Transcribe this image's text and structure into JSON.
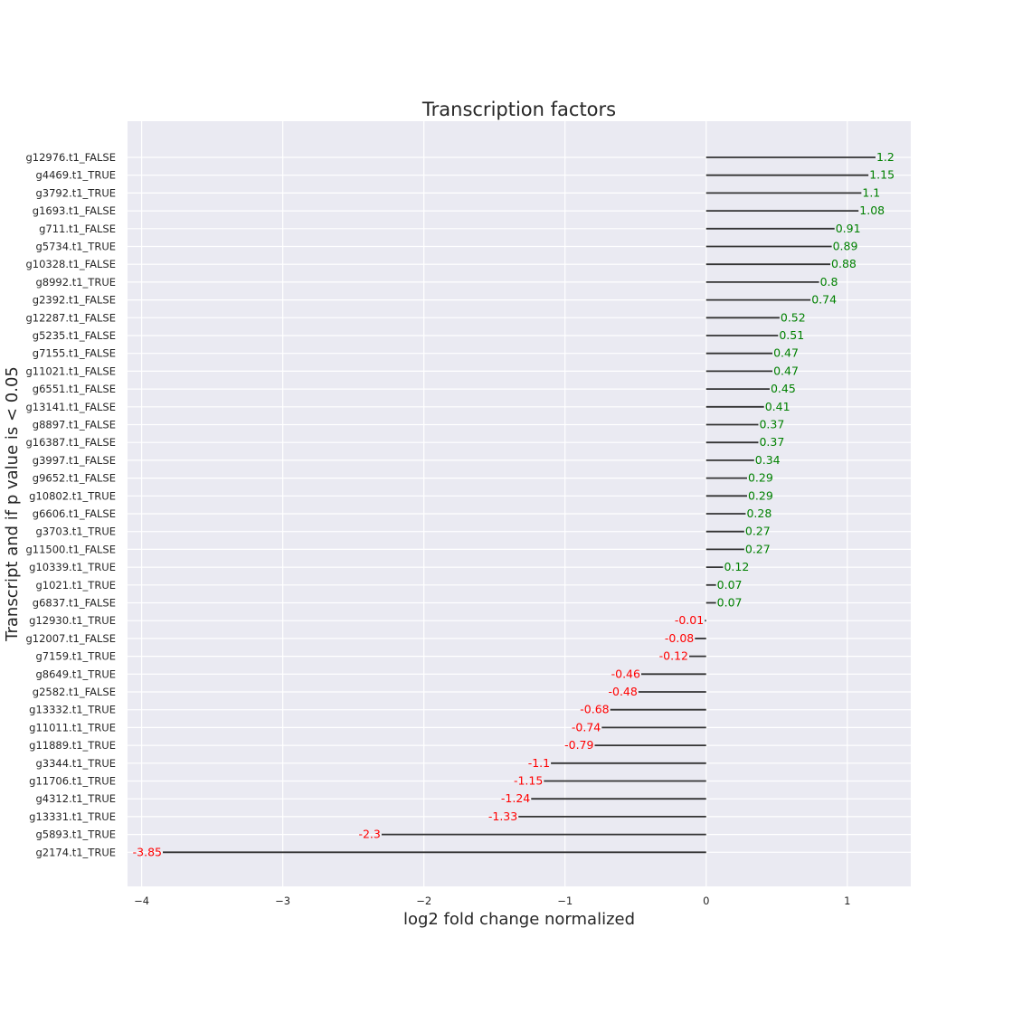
{
  "chart_data": {
    "type": "bar",
    "orientation": "horizontal",
    "style": "lollipop-lines",
    "title": "Transcription factors",
    "xlabel": "log2 fold change normalized",
    "ylabel": "Transcript and if p value is < 0.05",
    "xlim": [
      -4.1,
      1.45
    ],
    "xticks": [
      -4,
      -3,
      -2,
      -1,
      0,
      1
    ],
    "xtick_labels": [
      "−4",
      "−3",
      "−2",
      "−1",
      "0",
      "1"
    ],
    "grid": true,
    "colors": {
      "background": "#eaeaf2",
      "grid": "#ffffff",
      "line": "#333333",
      "positive_label": "#008000",
      "negative_label": "#ff0000"
    },
    "categories": [
      "g12976.t1_FALSE",
      "g4469.t1_TRUE",
      "g3792.t1_TRUE",
      "g1693.t1_FALSE",
      "g711.t1_FALSE",
      "g5734.t1_TRUE",
      "g10328.t1_FALSE",
      "g8992.t1_TRUE",
      "g2392.t1_FALSE",
      "g12287.t1_FALSE",
      "g5235.t1_FALSE",
      "g7155.t1_FALSE",
      "g11021.t1_FALSE",
      "g6551.t1_FALSE",
      "g13141.t1_FALSE",
      "g8897.t1_FALSE",
      "g16387.t1_FALSE",
      "g3997.t1_FALSE",
      "g9652.t1_FALSE",
      "g10802.t1_TRUE",
      "g6606.t1_FALSE",
      "g3703.t1_TRUE",
      "g11500.t1_FALSE",
      "g10339.t1_TRUE",
      "g1021.t1_TRUE",
      "g6837.t1_FALSE",
      "g12930.t1_TRUE",
      "g12007.t1_FALSE",
      "g7159.t1_TRUE",
      "g8649.t1_TRUE",
      "g2582.t1_FALSE",
      "g13332.t1_TRUE",
      "g11011.t1_TRUE",
      "g11889.t1_TRUE",
      "g3344.t1_TRUE",
      "g11706.t1_TRUE",
      "g4312.t1_TRUE",
      "g13331.t1_TRUE",
      "g5893.t1_TRUE",
      "g2174.t1_TRUE"
    ],
    "values": [
      1.2,
      1.15,
      1.1,
      1.08,
      0.91,
      0.89,
      0.88,
      0.8,
      0.74,
      0.52,
      0.51,
      0.47,
      0.47,
      0.45,
      0.41,
      0.37,
      0.37,
      0.34,
      0.29,
      0.29,
      0.28,
      0.27,
      0.27,
      0.12,
      0.07,
      0.07,
      -0.01,
      -0.08,
      -0.12,
      -0.46,
      -0.48,
      -0.68,
      -0.74,
      -0.79,
      -1.1,
      -1.15,
      -1.24,
      -1.33,
      -2.3,
      -3.85
    ],
    "value_labels": [
      "1.2",
      "1.15",
      "1.1",
      "1.08",
      "0.91",
      "0.89",
      "0.88",
      "0.8",
      "0.74",
      "0.52",
      "0.51",
      "0.47",
      "0.47",
      "0.45",
      "0.41",
      "0.37",
      "0.37",
      "0.34",
      "0.29",
      "0.29",
      "0.28",
      "0.27",
      "0.27",
      "0.12",
      "0.07",
      "0.07",
      "-0.01",
      "-0.08",
      "-0.12",
      "-0.46",
      "-0.48",
      "-0.68",
      "-0.74",
      "-0.79",
      "-1.1",
      "-1.15",
      "-1.24",
      "-1.33",
      "-2.3",
      "-3.85"
    ]
  }
}
